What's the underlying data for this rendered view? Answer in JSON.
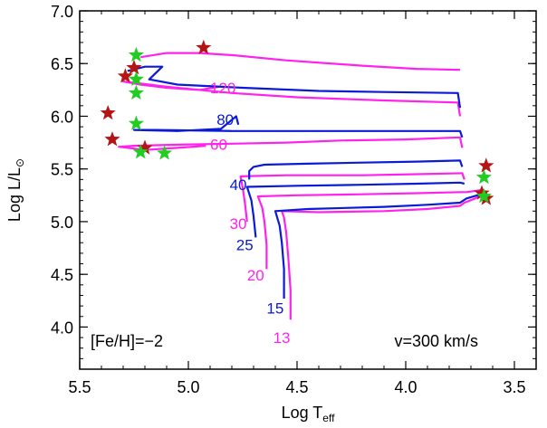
{
  "chart_data": {
    "type": "line",
    "xlabel_main": "Log T",
    "xlabel_sub": "eff",
    "ylabel_main": "Log L/L",
    "ylabel_sub": "⊙",
    "xlim": [
      5.5,
      3.4
    ],
    "ylim": [
      3.6,
      7.0
    ],
    "xticks": [
      "5.5",
      "5.0",
      "4.5",
      "4.0",
      "3.5"
    ],
    "xtick_values": [
      5.5,
      5.0,
      4.5,
      4.0,
      3.5
    ],
    "yticks": [
      "4.0",
      "4.5",
      "5.0",
      "5.5",
      "6.0",
      "6.5",
      "7.0"
    ],
    "ytick_values": [
      4.0,
      4.5,
      5.0,
      5.5,
      6.0,
      6.5,
      7.0
    ],
    "annotations": {
      "metallicity": "[Fe/H]=−2",
      "rotation": "v=300 km/s"
    },
    "colors": {
      "magenta": "#ff22ee",
      "blue": "#0a1ad6",
      "red_star": "#b41414",
      "green_star": "#22cc22"
    },
    "series": [
      {
        "name": "13",
        "color": "magenta",
        "label_pos": [
          4.61,
          3.85
        ],
        "points": [
          [
            4.53,
            4.07
          ],
          [
            4.53,
            4.35
          ],
          [
            4.54,
            4.65
          ],
          [
            4.55,
            4.9
          ],
          [
            4.56,
            5.04
          ],
          [
            4.57,
            5.1
          ],
          [
            4.4,
            5.09
          ],
          [
            4.1,
            5.1
          ],
          [
            3.9,
            5.12
          ],
          [
            3.75,
            5.15
          ],
          [
            3.73,
            5.18
          ],
          [
            3.68,
            5.22
          ],
          [
            3.66,
            5.24
          ],
          [
            3.63,
            5.23
          ]
        ]
      },
      {
        "name": "15",
        "color": "blue",
        "label_pos": [
          4.64,
          4.13
        ],
        "points": [
          [
            4.56,
            4.27
          ],
          [
            4.56,
            4.55
          ],
          [
            4.57,
            4.8
          ],
          [
            4.58,
            4.96
          ],
          [
            4.6,
            5.1
          ],
          [
            4.45,
            5.12
          ],
          [
            4.1,
            5.14
          ],
          [
            3.9,
            5.16
          ],
          [
            3.75,
            5.18
          ],
          [
            3.72,
            5.22
          ],
          [
            3.67,
            5.25
          ],
          [
            3.64,
            5.3
          ]
        ]
      },
      {
        "name": "20",
        "color": "magenta",
        "label_pos": [
          4.73,
          4.44
        ],
        "points": [
          [
            4.64,
            4.55
          ],
          [
            4.64,
            4.78
          ],
          [
            4.65,
            5.0
          ],
          [
            4.66,
            5.13
          ],
          [
            4.68,
            5.24
          ],
          [
            4.5,
            5.25
          ],
          [
            4.2,
            5.26
          ],
          [
            3.95,
            5.27
          ],
          [
            3.74,
            5.28
          ],
          [
            3.72,
            5.28
          ],
          [
            3.65,
            5.3
          ]
        ]
      },
      {
        "name": "25",
        "color": "blue",
        "label_pos": [
          4.78,
          4.73
        ],
        "points": [
          [
            4.69,
            4.85
          ],
          [
            4.7,
            5.05
          ],
          [
            4.71,
            5.2
          ],
          [
            4.73,
            5.33
          ],
          [
            4.5,
            5.34
          ],
          [
            4.2,
            5.35
          ],
          [
            3.95,
            5.36
          ],
          [
            3.75,
            5.37
          ],
          [
            3.73,
            5.36
          ]
        ]
      },
      {
        "name": "30",
        "color": "magenta",
        "label_pos": [
          4.81,
          4.93
        ],
        "points": [
          [
            4.73,
            5.0
          ],
          [
            4.74,
            5.18
          ],
          [
            4.75,
            5.32
          ],
          [
            4.76,
            5.43
          ],
          [
            4.55,
            5.44
          ],
          [
            4.2,
            5.44
          ],
          [
            3.95,
            5.45
          ],
          [
            3.74,
            5.46
          ],
          [
            3.73,
            5.4
          ]
        ]
      },
      {
        "name": "40",
        "color": "blue",
        "label_pos": [
          4.81,
          5.3
        ],
        "points": [
          [
            4.72,
            5.4
          ],
          [
            4.72,
            5.48
          ],
          [
            4.7,
            5.52
          ],
          [
            4.65,
            5.54
          ],
          [
            4.45,
            5.55
          ],
          [
            4.2,
            5.56
          ],
          [
            3.95,
            5.57
          ],
          [
            3.75,
            5.58
          ],
          [
            3.74,
            5.52
          ]
        ]
      },
      {
        "name": "60",
        "color": "magenta",
        "label_pos": [
          4.9,
          5.68
        ],
        "points": [
          [
            4.92,
            5.72
          ],
          [
            5.05,
            5.7
          ],
          [
            5.2,
            5.68
          ],
          [
            5.32,
            5.71
          ],
          [
            5.25,
            5.72
          ],
          [
            5.05,
            5.73
          ],
          [
            4.8,
            5.74
          ],
          [
            4.55,
            5.75
          ],
          [
            4.3,
            5.77
          ],
          [
            4.0,
            5.78
          ],
          [
            3.75,
            5.8
          ],
          [
            3.74,
            5.7
          ]
        ]
      },
      {
        "name": "80",
        "color": "blue",
        "label_pos": [
          4.87,
          5.92
        ],
        "points": [
          [
            4.77,
            5.92
          ],
          [
            4.78,
            6.0
          ],
          [
            4.85,
            5.88
          ],
          [
            5.05,
            5.86
          ],
          [
            5.25,
            5.87
          ],
          [
            5.15,
            5.87
          ],
          [
            4.8,
            5.86
          ],
          [
            4.5,
            5.86
          ],
          [
            4.1,
            5.86
          ],
          [
            3.75,
            5.86
          ],
          [
            3.74,
            5.8
          ]
        ]
      },
      {
        "name": "120",
        "color": "magenta",
        "label_pos": [
          4.9,
          6.22
        ],
        "points": [
          [
            4.86,
            6.28
          ],
          [
            4.95,
            6.25
          ],
          [
            5.1,
            6.27
          ],
          [
            5.22,
            6.3
          ],
          [
            5.3,
            6.33
          ],
          [
            5.1,
            6.28
          ],
          [
            4.8,
            6.22
          ],
          [
            4.5,
            6.18
          ],
          [
            4.1,
            6.15
          ],
          [
            3.76,
            6.13
          ],
          [
            3.75,
            6.0
          ]
        ]
      },
      {
        "name": "",
        "color": "blue",
        "label_pos": null,
        "points": [
          [
            5.28,
            6.43
          ],
          [
            5.2,
            6.47
          ],
          [
            5.12,
            6.47
          ],
          [
            5.18,
            6.35
          ],
          [
            5.05,
            6.3
          ],
          [
            4.75,
            6.27
          ],
          [
            4.4,
            6.24
          ],
          [
            4.1,
            6.23
          ],
          [
            3.76,
            6.22
          ],
          [
            3.75,
            6.08
          ]
        ]
      },
      {
        "name": "",
        "color": "magenta",
        "label_pos": null,
        "points": [
          [
            5.22,
            6.56
          ],
          [
            5.1,
            6.6
          ],
          [
            4.95,
            6.6
          ],
          [
            4.8,
            6.58
          ],
          [
            4.55,
            6.53
          ],
          [
            4.2,
            6.48
          ],
          [
            3.95,
            6.45
          ],
          [
            3.75,
            6.44
          ]
        ]
      }
    ],
    "stars": [
      {
        "color": "red_star",
        "x": 4.93,
        "y": 6.65
      },
      {
        "color": "red_star",
        "x": 5.25,
        "y": 6.46
      },
      {
        "color": "red_star",
        "x": 5.29,
        "y": 6.38
      },
      {
        "color": "red_star",
        "x": 5.37,
        "y": 6.03
      },
      {
        "color": "red_star",
        "x": 5.35,
        "y": 5.78
      },
      {
        "color": "red_star",
        "x": 5.2,
        "y": 5.7
      },
      {
        "color": "red_star",
        "x": 3.63,
        "y": 5.53
      },
      {
        "color": "red_star",
        "x": 3.65,
        "y": 5.27
      },
      {
        "color": "red_star",
        "x": 3.63,
        "y": 5.22
      },
      {
        "color": "green_star",
        "x": 5.24,
        "y": 6.58
      },
      {
        "color": "green_star",
        "x": 5.24,
        "y": 6.35
      },
      {
        "color": "green_star",
        "x": 5.24,
        "y": 6.22
      },
      {
        "color": "green_star",
        "x": 5.24,
        "y": 5.93
      },
      {
        "color": "green_star",
        "x": 5.22,
        "y": 5.66
      },
      {
        "color": "green_star",
        "x": 5.11,
        "y": 5.65
      },
      {
        "color": "green_star",
        "x": 3.64,
        "y": 5.42
      },
      {
        "color": "green_star",
        "x": 3.64,
        "y": 5.24
      }
    ]
  }
}
